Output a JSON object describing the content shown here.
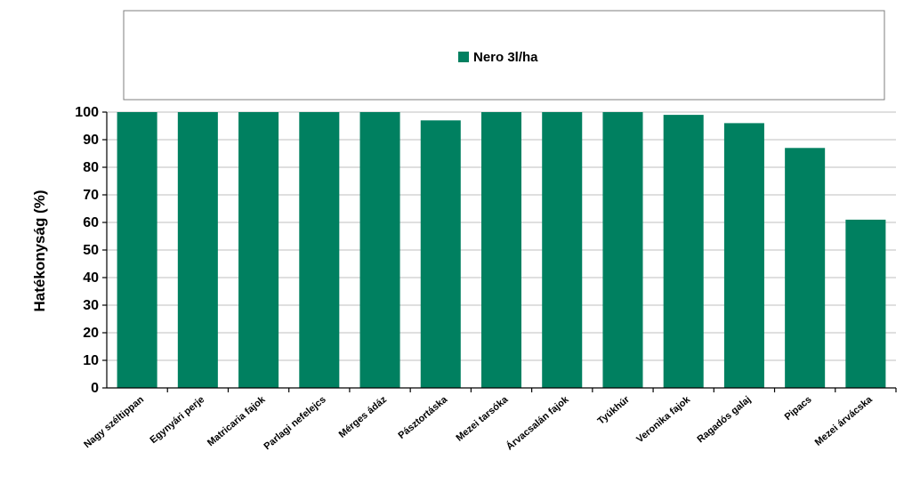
{
  "chart_data": {
    "type": "bar",
    "title": "",
    "xlabel": "",
    "ylabel": "Hatékonyság (%)",
    "ylim": [
      0,
      100
    ],
    "yticks": [
      0,
      10,
      20,
      30,
      40,
      50,
      60,
      70,
      80,
      90,
      100
    ],
    "categories": [
      "Nagy széltippan",
      "Egynyári perje",
      "Matricaria fajok",
      "Parlagi nefelejcs",
      "Mérges ádáz",
      "Pásztortáska",
      "Mezei tarsóka",
      "Árvacsalán fajok",
      "Tyúkhúr",
      "Veronika fajok",
      "Ragadós galaj",
      "Pipacs",
      "Mezei árvácska"
    ],
    "series": [
      {
        "name": "Nero 3l/ha",
        "color": "#008060",
        "values": [
          100,
          100,
          100,
          100,
          100,
          97,
          100,
          100,
          100,
          99,
          96,
          87,
          61
        ]
      }
    ],
    "legend_position": "top",
    "grid": true
  }
}
